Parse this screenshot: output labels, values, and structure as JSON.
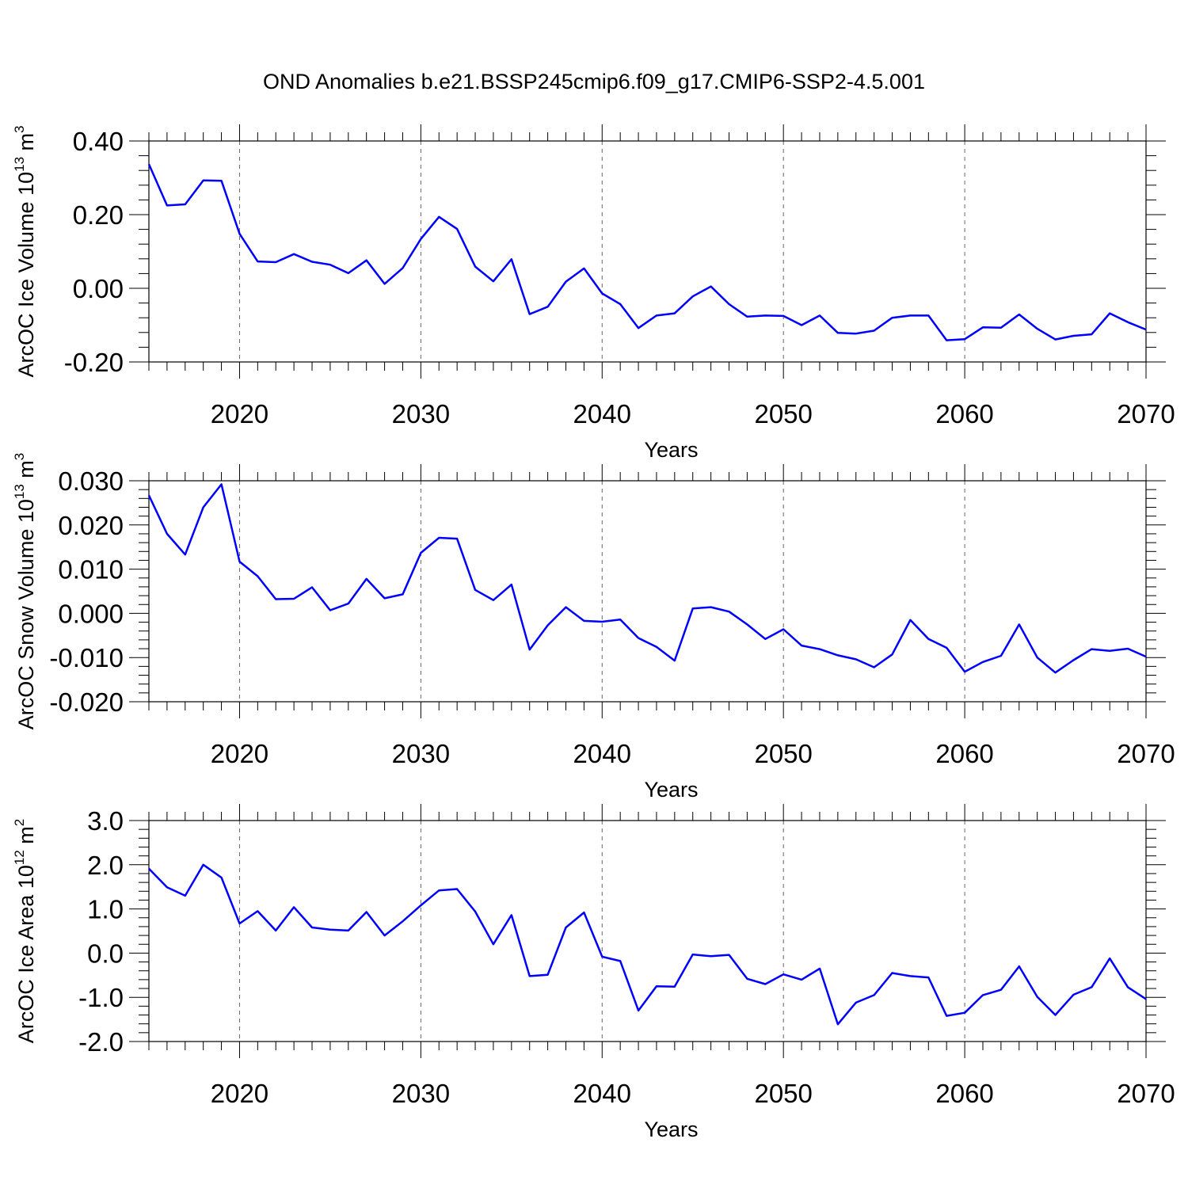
{
  "title": "OND Anomalies b.e21.BSSP245cmip6.f09_g17.CMIP6-SSP2-4.5.001",
  "colors": {
    "series": "#0000ff",
    "axis": "#000000",
    "grid": "#666666"
  },
  "chart_data": [
    {
      "type": "line",
      "name": "ice-volume",
      "ylabel": {
        "text": "ArcOC Ice Volume 10",
        "exp": "13",
        "unit": " m",
        "unit_exp": "3"
      },
      "xlabel": "Years",
      "xlim": [
        2015,
        2070
      ],
      "ylim": [
        -0.2,
        0.4
      ],
      "yticks": [
        -0.2,
        0.0,
        0.2,
        0.4
      ],
      "ytick_labels": [
        "-0.20",
        "0.00",
        "0.20",
        "0.40"
      ],
      "xticks": [
        2020,
        2030,
        2040,
        2050,
        2060,
        2070
      ],
      "xtick_labels": [
        "2020",
        "2030",
        "2040",
        "2050",
        "2060",
        "2070"
      ],
      "grid": "vertical dashed at x ticks",
      "x": [
        2015,
        2016,
        2017,
        2018,
        2019,
        2020,
        2021,
        2022,
        2023,
        2024,
        2025,
        2026,
        2027,
        2028,
        2029,
        2030,
        2031,
        2032,
        2033,
        2034,
        2035,
        2036,
        2037,
        2038,
        2039,
        2040,
        2041,
        2042,
        2043,
        2044,
        2045,
        2046,
        2047,
        2048,
        2049,
        2050,
        2051,
        2052,
        2053,
        2054,
        2055,
        2056,
        2057,
        2058,
        2059,
        2060,
        2061,
        2062,
        2063,
        2064,
        2065,
        2066,
        2067,
        2068,
        2069,
        2070
      ],
      "y": [
        0.337,
        0.225,
        0.228,
        0.293,
        0.292,
        0.148,
        0.073,
        0.071,
        0.093,
        0.072,
        0.064,
        0.041,
        0.076,
        0.012,
        0.055,
        0.134,
        0.194,
        0.161,
        0.059,
        0.019,
        0.079,
        -0.07,
        -0.05,
        0.018,
        0.054,
        -0.014,
        -0.043,
        -0.108,
        -0.074,
        -0.068,
        -0.022,
        0.005,
        -0.043,
        -0.077,
        -0.074,
        -0.075,
        -0.1,
        -0.074,
        -0.121,
        -0.123,
        -0.115,
        -0.08,
        -0.074,
        -0.074,
        -0.141,
        -0.138,
        -0.106,
        -0.107,
        -0.071,
        -0.11,
        -0.139,
        -0.129,
        -0.125,
        -0.068,
        -0.092,
        -0.112
      ]
    },
    {
      "type": "line",
      "name": "snow-volume",
      "ylabel": {
        "text": "ArcOC Snow Volume 10",
        "exp": "13",
        "unit": " m",
        "unit_exp": "3"
      },
      "xlabel": "Years",
      "xlim": [
        2015,
        2070
      ],
      "ylim": [
        -0.02,
        0.03
      ],
      "yticks": [
        -0.02,
        -0.01,
        0.0,
        0.01,
        0.02,
        0.03
      ],
      "ytick_labels": [
        "-0.020",
        "-0.010",
        "0.000",
        "0.010",
        "0.020",
        "0.030"
      ],
      "xticks": [
        2020,
        2030,
        2040,
        2050,
        2060,
        2070
      ],
      "xtick_labels": [
        "2020",
        "2030",
        "2040",
        "2050",
        "2060",
        "2070"
      ],
      "grid": "vertical dashed at x ticks",
      "x": [
        2015,
        2016,
        2017,
        2018,
        2019,
        2020,
        2021,
        2022,
        2023,
        2024,
        2025,
        2026,
        2027,
        2028,
        2029,
        2030,
        2031,
        2032,
        2033,
        2034,
        2035,
        2036,
        2037,
        2038,
        2039,
        2040,
        2041,
        2042,
        2043,
        2044,
        2045,
        2046,
        2047,
        2048,
        2049,
        2050,
        2051,
        2052,
        2053,
        2054,
        2055,
        2056,
        2057,
        2058,
        2059,
        2060,
        2061,
        2062,
        2063,
        2064,
        2065,
        2066,
        2067,
        2068,
        2069,
        2070
      ],
      "y": [
        0.0267,
        0.018,
        0.0133,
        0.024,
        0.0292,
        0.0117,
        0.0084,
        0.0032,
        0.0033,
        0.0059,
        0.0007,
        0.0022,
        0.0078,
        0.0034,
        0.0043,
        0.0137,
        0.0171,
        0.0169,
        0.0053,
        0.003,
        0.0065,
        -0.0082,
        -0.0027,
        0.0014,
        -0.0017,
        -0.0019,
        -0.0014,
        -0.0056,
        -0.0076,
        -0.0107,
        0.0011,
        0.0014,
        0.0004,
        -0.0025,
        -0.0058,
        -0.0036,
        -0.0073,
        -0.0081,
        -0.0095,
        -0.0104,
        -0.0122,
        -0.0093,
        -0.0015,
        -0.0058,
        -0.0078,
        -0.0132,
        -0.011,
        -0.0096,
        -0.0025,
        -0.01,
        -0.0134,
        -0.0106,
        -0.0081,
        -0.0085,
        -0.008,
        -0.0098
      ]
    },
    {
      "type": "line",
      "name": "ice-area",
      "ylabel": {
        "text": "ArcOC Ice Area 10",
        "exp": "12",
        "unit": " m",
        "unit_exp": "2"
      },
      "xlabel": "Years",
      "xlim": [
        2015,
        2070
      ],
      "ylim": [
        -2.0,
        3.0
      ],
      "yticks": [
        -2.0,
        -1.0,
        0.0,
        1.0,
        2.0,
        3.0
      ],
      "ytick_labels": [
        "-2.0",
        "-1.0",
        "0.0",
        "1.0",
        "2.0",
        "3.0"
      ],
      "xticks": [
        2020,
        2030,
        2040,
        2050,
        2060,
        2070
      ],
      "xtick_labels": [
        "2020",
        "2030",
        "2040",
        "2050",
        "2060",
        "2070"
      ],
      "grid": "vertical dashed at x ticks",
      "x": [
        2015,
        2016,
        2017,
        2018,
        2019,
        2020,
        2021,
        2022,
        2023,
        2024,
        2025,
        2026,
        2027,
        2028,
        2029,
        2030,
        2031,
        2032,
        2033,
        2034,
        2035,
        2036,
        2037,
        2038,
        2039,
        2040,
        2041,
        2042,
        2043,
        2044,
        2045,
        2046,
        2047,
        2048,
        2049,
        2050,
        2051,
        2052,
        2053,
        2054,
        2055,
        2056,
        2057,
        2058,
        2059,
        2060,
        2061,
        2062,
        2063,
        2064,
        2065,
        2066,
        2067,
        2068,
        2069,
        2070
      ],
      "y": [
        1.91,
        1.49,
        1.3,
        2.0,
        1.71,
        0.67,
        0.95,
        0.51,
        1.04,
        0.58,
        0.53,
        0.51,
        0.93,
        0.4,
        0.72,
        1.08,
        1.42,
        1.45,
        0.94,
        0.2,
        0.86,
        -0.52,
        -0.49,
        0.58,
        0.92,
        -0.08,
        -0.18,
        -1.3,
        -0.75,
        -0.76,
        -0.03,
        -0.07,
        -0.04,
        -0.58,
        -0.7,
        -0.48,
        -0.6,
        -0.35,
        -1.61,
        -1.12,
        -0.95,
        -0.45,
        -0.52,
        -0.55,
        -1.42,
        -1.35,
        -0.95,
        -0.83,
        -0.3,
        -0.99,
        -1.4,
        -0.94,
        -0.77,
        -0.12,
        -0.77,
        -1.04
      ]
    }
  ]
}
